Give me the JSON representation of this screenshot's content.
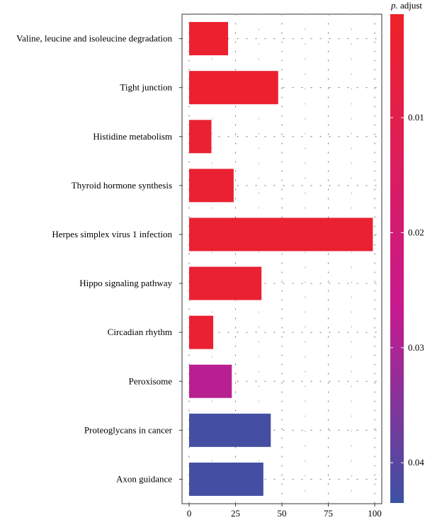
{
  "chart_data": {
    "type": "bar",
    "orientation": "horizontal",
    "categories": [
      "Valine, leucine and isoleucine degradation",
      "Tight junction",
      "Histidine metabolism",
      "Thyroid hormone synthesis",
      "Herpes simplex virus 1 infection",
      "Hippo signaling pathway",
      "Circadian rhythm",
      "Peroxisome",
      "Proteoglycans in cancer",
      "Axon guidance"
    ],
    "values": [
      21,
      48,
      12,
      24,
      99,
      39,
      13,
      23,
      44,
      40
    ],
    "p_adjust": [
      0.0032,
      0.0032,
      0.0034,
      0.0034,
      0.0034,
      0.0037,
      0.0037,
      0.0285,
      0.0425,
      0.0425
    ],
    "xlim": [
      0,
      103
    ],
    "x_ticks": [
      "0",
      "25",
      "50",
      "75",
      "100"
    ],
    "x_tick_values": [
      0,
      25,
      50,
      75,
      100
    ],
    "grid": "dotted",
    "legend": {
      "title_italic": "p.",
      "title_rest": " adjust",
      "placement": "right",
      "range": [
        0.001,
        0.0435
      ],
      "ticks": [
        "0.01",
        "0.02",
        "0.03",
        "0.04"
      ],
      "tick_values": [
        0.01,
        0.02,
        0.03,
        0.04
      ],
      "color_low": "#ee2227",
      "color_mid": "#c8198f",
      "color_high": "#3c52a4"
    }
  }
}
